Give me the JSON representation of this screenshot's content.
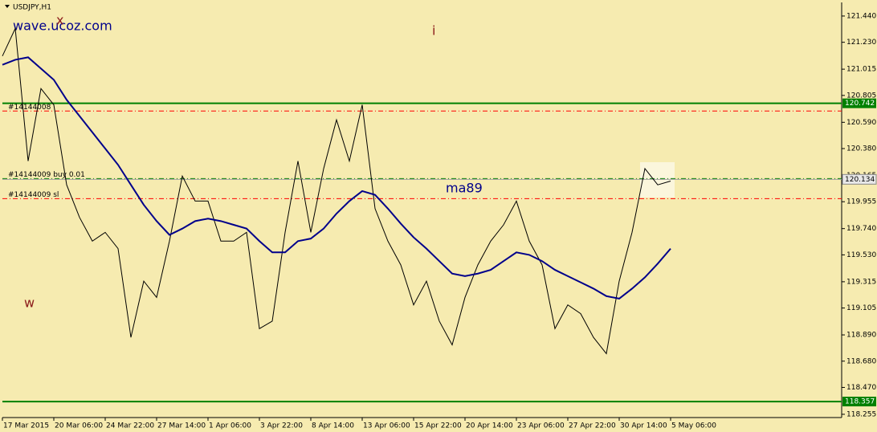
{
  "chart_data": {
    "type": "line",
    "title": "USDJPY,H1",
    "annotations": [
      "wave.ucoz.com",
      "x",
      "i",
      "w",
      "ma89"
    ],
    "categories": [
      "17 Mar 2015",
      null,
      null,
      null,
      "20 Mar 06:00",
      null,
      null,
      null,
      "24 Mar 22:00",
      null,
      null,
      null,
      "27 Mar 14:00",
      null,
      null,
      null,
      "1 Apr 06:00",
      null,
      null,
      null,
      "3 Apr 22:00",
      null,
      null,
      null,
      "8 Apr 14:00",
      null,
      null,
      null,
      "13 Apr 06:00",
      null,
      null,
      null,
      "15 Apr 22:00",
      null,
      null,
      null,
      "20 Apr 14:00",
      null,
      null,
      null,
      "23 Apr 06:00",
      null,
      null,
      null,
      "27 Apr 22:00",
      null,
      null,
      null,
      "30 Apr 14:00",
      null,
      null,
      null,
      "5 May 06:00"
    ],
    "series": [
      {
        "name": "USDJPY",
        "color": "#000000",
        "values": [
          121.12,
          121.34,
          120.28,
          120.86,
          120.73,
          120.09,
          119.83,
          119.64,
          119.71,
          119.58,
          118.87,
          119.32,
          119.19,
          119.64,
          120.16,
          119.96,
          119.96,
          119.64,
          119.64,
          119.71,
          118.94,
          119.0,
          119.71,
          120.28,
          119.71,
          120.22,
          120.61,
          120.28,
          120.73,
          119.9,
          119.64,
          119.45,
          119.13,
          119.32,
          119.0,
          118.81,
          119.19,
          119.45,
          119.64,
          119.77,
          119.96,
          119.64,
          119.45,
          118.94,
          119.13,
          119.06,
          118.87,
          118.74,
          119.32,
          119.71,
          120.22,
          120.09,
          120.12
        ]
      },
      {
        "name": "ma89",
        "color": "#00008b",
        "values": [
          121.05,
          121.09,
          121.11,
          121.02,
          120.93,
          120.77,
          120.64,
          120.51,
          120.38,
          120.25,
          120.09,
          119.93,
          119.8,
          119.69,
          119.74,
          119.8,
          119.82,
          119.8,
          119.77,
          119.74,
          119.64,
          119.55,
          119.55,
          119.64,
          119.66,
          119.74,
          119.86,
          119.96,
          120.04,
          120.01,
          119.9,
          119.78,
          119.67,
          119.58,
          119.48,
          119.38,
          119.36,
          119.38,
          119.41,
          119.48,
          119.55,
          119.53,
          119.48,
          119.41,
          119.36,
          119.31,
          119.26,
          119.2,
          119.18,
          119.26,
          119.35,
          119.46,
          119.58
        ]
      }
    ],
    "levels": [
      {
        "value": 120.742,
        "color": "#008000",
        "style": "solid",
        "tagged": true
      },
      {
        "value": 118.357,
        "color": "#008000",
        "style": "solid",
        "tagged": true
      },
      {
        "value": 120.68,
        "color": "#ff0000",
        "style": "dashdot",
        "name": "#14144008"
      },
      {
        "value": 120.14,
        "color": "#008000",
        "style": "dashdot",
        "name": "#14144009 buy 0.01"
      },
      {
        "value": 119.98,
        "color": "#ff0000",
        "style": "dashdot",
        "name": "#14144009 sl"
      }
    ],
    "current_price": 120.134,
    "ylim": [
      118.229,
      121.536
    ],
    "yticks": [
      {
        "value": 121.44,
        "label": "121.440"
      },
      {
        "value": 121.23,
        "label": "121.230"
      },
      121.015,
      120.805,
      {
        "value": 120.59,
        "label": "120.590"
      },
      {
        "value": 120.38,
        "label": "120.380"
      },
      120.165,
      119.955,
      {
        "value": 119.74,
        "label": "119.740"
      },
      {
        "value": 119.53,
        "label": "119.530"
      },
      119.315,
      119.105,
      {
        "value": 118.89,
        "label": "118.890"
      },
      {
        "value": 118.68,
        "label": "118.680"
      },
      {
        "value": 118.47,
        "label": "118.470"
      },
      118.255
    ],
    "grid": false
  }
}
